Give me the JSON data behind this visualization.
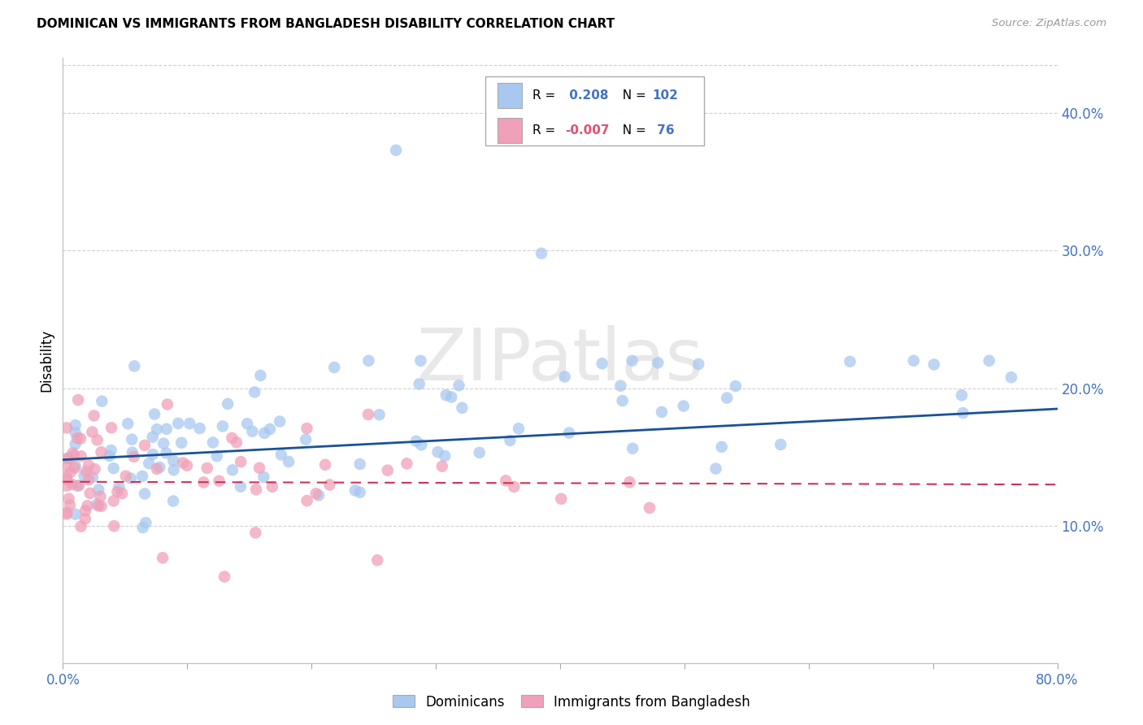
{
  "title": "DOMINICAN VS IMMIGRANTS FROM BANGLADESH DISABILITY CORRELATION CHART",
  "source": "Source: ZipAtlas.com",
  "ylabel": "Disability",
  "xlim": [
    0.0,
    0.8
  ],
  "ylim": [
    0.0,
    0.44
  ],
  "blue_R": 0.208,
  "blue_N": 102,
  "pink_R": -0.007,
  "pink_N": 76,
  "blue_color": "#a8c8f0",
  "pink_color": "#f0a0b8",
  "blue_line_color": "#1a5296",
  "pink_line_color": "#cc3355",
  "legend_labels": [
    "Dominicans",
    "Immigrants from Bangladesh"
  ],
  "watermark_text": "ZIPatlas",
  "grid_color": "#d0d0d0",
  "ytick_right_labels": [
    "10.0%",
    "20.0%",
    "30.0%",
    "40.0%"
  ],
  "ytick_right_vals": [
    0.1,
    0.2,
    0.3,
    0.4
  ],
  "blue_line_start_y": 0.148,
  "blue_line_end_y": 0.185,
  "pink_line_y": 0.132
}
